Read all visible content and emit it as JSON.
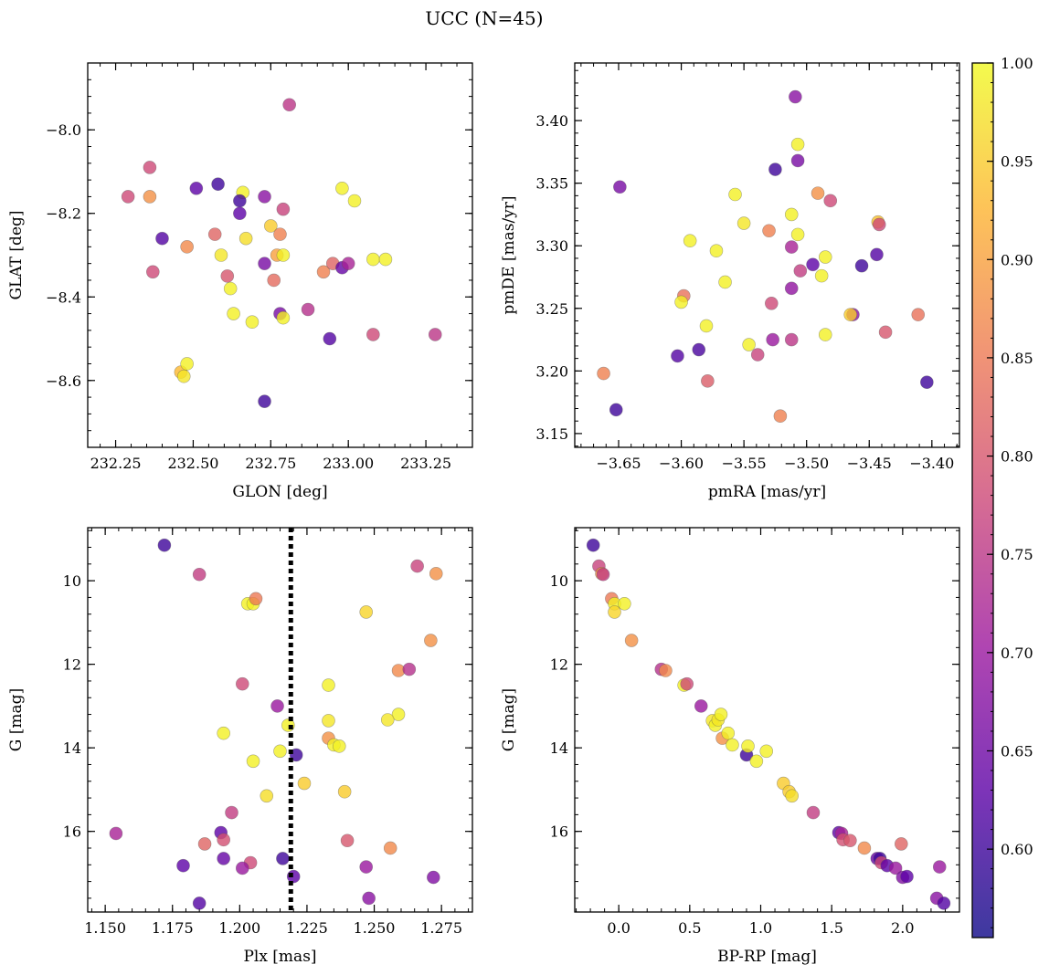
{
  "figure": {
    "title": "UCC (N=45)",
    "colorbar": {
      "vmin": 0.555,
      "vmax": 1.0,
      "ticks": [
        0.6,
        0.65,
        0.7,
        0.75,
        0.8,
        0.85,
        0.9,
        0.95,
        1.0
      ],
      "tick_labels": [
        "0.60",
        "0.65",
        "0.70",
        "0.75",
        "0.80",
        "0.85",
        "0.90",
        "0.95",
        "1.00"
      ],
      "colormap": "plasma"
    },
    "marker_color_scale": [
      "#0d0887",
      "#5c01a6",
      "#9c179e",
      "#cc4778",
      "#ed7953",
      "#fdb42f",
      "#f0f921"
    ]
  },
  "chart_data": [
    {
      "type": "scatter",
      "panel": "top-left",
      "xlabel": "GLON [deg]",
      "ylabel": "GLAT [deg]",
      "xlim": [
        232.16,
        233.4
      ],
      "ylim": [
        -8.76,
        -7.84
      ],
      "xticks": [
        232.25,
        232.5,
        232.75,
        233.0,
        233.25
      ],
      "xtick_labels": [
        "232.25",
        "232.50",
        "232.75",
        "233.00",
        "233.25"
      ],
      "yticks": [
        -8.0,
        -8.2,
        -8.4,
        -8.6
      ],
      "ytick_labels": [
        "−8.0",
        "−8.2",
        "−8.4",
        "−8.6"
      ],
      "points": [
        {
          "x": 232.81,
          "y": -7.94,
          "c": 0.75
        },
        {
          "x": 232.36,
          "y": -8.09,
          "c": 0.78
        },
        {
          "x": 232.29,
          "y": -8.16,
          "c": 0.78
        },
        {
          "x": 232.36,
          "y": -8.16,
          "c": 0.88
        },
        {
          "x": 232.51,
          "y": -8.14,
          "c": 0.63
        },
        {
          "x": 232.58,
          "y": -8.13,
          "c": 0.6
        },
        {
          "x": 232.66,
          "y": -8.15,
          "c": 0.99
        },
        {
          "x": 232.65,
          "y": -8.17,
          "c": 0.6
        },
        {
          "x": 232.65,
          "y": -8.2,
          "c": 0.63
        },
        {
          "x": 232.73,
          "y": -8.16,
          "c": 0.68
        },
        {
          "x": 232.79,
          "y": -8.19,
          "c": 0.77
        },
        {
          "x": 232.98,
          "y": -8.14,
          "c": 0.99
        },
        {
          "x": 233.02,
          "y": -8.17,
          "c": 0.99
        },
        {
          "x": 232.4,
          "y": -8.26,
          "c": 0.62
        },
        {
          "x": 232.37,
          "y": -8.34,
          "c": 0.78
        },
        {
          "x": 232.48,
          "y": -8.28,
          "c": 0.87
        },
        {
          "x": 232.57,
          "y": -8.25,
          "c": 0.82
        },
        {
          "x": 232.59,
          "y": -8.3,
          "c": 0.98
        },
        {
          "x": 232.61,
          "y": -8.35,
          "c": 0.8
        },
        {
          "x": 232.62,
          "y": -8.38,
          "c": 0.99
        },
        {
          "x": 232.67,
          "y": -8.26,
          "c": 0.97
        },
        {
          "x": 232.75,
          "y": -8.23,
          "c": 0.95
        },
        {
          "x": 232.77,
          "y": -8.3,
          "c": 0.9
        },
        {
          "x": 232.78,
          "y": -8.25,
          "c": 0.86
        },
        {
          "x": 232.79,
          "y": -8.3,
          "c": 0.99
        },
        {
          "x": 232.73,
          "y": -8.32,
          "c": 0.66
        },
        {
          "x": 232.76,
          "y": -8.36,
          "c": 0.83
        },
        {
          "x": 232.63,
          "y": -8.44,
          "c": 0.99
        },
        {
          "x": 232.69,
          "y": -8.46,
          "c": 0.99
        },
        {
          "x": 232.78,
          "y": -8.44,
          "c": 0.66
        },
        {
          "x": 232.79,
          "y": -8.45,
          "c": 0.99
        },
        {
          "x": 232.87,
          "y": -8.43,
          "c": 0.74
        },
        {
          "x": 232.92,
          "y": -8.34,
          "c": 0.86
        },
        {
          "x": 232.95,
          "y": -8.32,
          "c": 0.82
        },
        {
          "x": 232.98,
          "y": -8.33,
          "c": 0.64
        },
        {
          "x": 233.0,
          "y": -8.32,
          "c": 0.72
        },
        {
          "x": 233.08,
          "y": -8.31,
          "c": 0.99
        },
        {
          "x": 233.12,
          "y": -8.31,
          "c": 0.99
        },
        {
          "x": 232.94,
          "y": -8.5,
          "c": 0.62
        },
        {
          "x": 233.08,
          "y": -8.49,
          "c": 0.78
        },
        {
          "x": 233.28,
          "y": -8.49,
          "c": 0.75
        },
        {
          "x": 232.46,
          "y": -8.58,
          "c": 0.93
        },
        {
          "x": 232.48,
          "y": -8.56,
          "c": 0.99
        },
        {
          "x": 232.47,
          "y": -8.59,
          "c": 0.98
        },
        {
          "x": 232.73,
          "y": -8.65,
          "c": 0.6
        }
      ]
    },
    {
      "type": "scatter",
      "panel": "top-right",
      "xlabel": "pmRA [mas/yr]",
      "ylabel": "pmDE [mas/yr]",
      "xlim": [
        -3.685,
        -3.378
      ],
      "ylim": [
        3.139,
        3.446
      ],
      "xticks": [
        -3.65,
        -3.6,
        -3.55,
        -3.5,
        -3.45,
        -3.4
      ],
      "xtick_labels": [
        "−3.65",
        "−3.60",
        "−3.55",
        "−3.50",
        "−3.45",
        "−3.40"
      ],
      "yticks": [
        3.15,
        3.2,
        3.25,
        3.3,
        3.35,
        3.4
      ],
      "ytick_labels": [
        "3.15",
        "3.20",
        "3.25",
        "3.30",
        "3.35",
        "3.40"
      ],
      "points": [
        {
          "x": -3.509,
          "y": 3.419,
          "c": 0.68
        },
        {
          "x": -3.507,
          "y": 3.381,
          "c": 0.99
        },
        {
          "x": -3.507,
          "y": 3.368,
          "c": 0.66
        },
        {
          "x": -3.525,
          "y": 3.361,
          "c": 0.6
        },
        {
          "x": -3.649,
          "y": 3.347,
          "c": 0.66
        },
        {
          "x": -3.557,
          "y": 3.341,
          "c": 0.99
        },
        {
          "x": -3.491,
          "y": 3.342,
          "c": 0.88
        },
        {
          "x": -3.481,
          "y": 3.336,
          "c": 0.78
        },
        {
          "x": -3.512,
          "y": 3.325,
          "c": 0.99
        },
        {
          "x": -3.443,
          "y": 3.319,
          "c": 0.94
        },
        {
          "x": -3.442,
          "y": 3.317,
          "c": 0.78
        },
        {
          "x": -3.55,
          "y": 3.318,
          "c": 0.98
        },
        {
          "x": -3.53,
          "y": 3.312,
          "c": 0.86
        },
        {
          "x": -3.507,
          "y": 3.309,
          "c": 0.99
        },
        {
          "x": -3.593,
          "y": 3.304,
          "c": 0.99
        },
        {
          "x": -3.572,
          "y": 3.296,
          "c": 0.99
        },
        {
          "x": -3.512,
          "y": 3.299,
          "c": 0.72
        },
        {
          "x": -3.495,
          "y": 3.285,
          "c": 0.63
        },
        {
          "x": -3.456,
          "y": 3.284,
          "c": 0.6
        },
        {
          "x": -3.485,
          "y": 3.291,
          "c": 0.99
        },
        {
          "x": -3.444,
          "y": 3.293,
          "c": 0.62
        },
        {
          "x": -3.565,
          "y": 3.271,
          "c": 0.99
        },
        {
          "x": -3.505,
          "y": 3.28,
          "c": 0.76
        },
        {
          "x": -3.488,
          "y": 3.276,
          "c": 0.99
        },
        {
          "x": -3.512,
          "y": 3.266,
          "c": 0.69
        },
        {
          "x": -3.598,
          "y": 3.26,
          "c": 0.84
        },
        {
          "x": -3.6,
          "y": 3.255,
          "c": 0.99
        },
        {
          "x": -3.528,
          "y": 3.254,
          "c": 0.78
        },
        {
          "x": -3.463,
          "y": 3.245,
          "c": 0.68
        },
        {
          "x": -3.465,
          "y": 3.245,
          "c": 0.95
        },
        {
          "x": -3.411,
          "y": 3.245,
          "c": 0.84
        },
        {
          "x": -3.437,
          "y": 3.231,
          "c": 0.8
        },
        {
          "x": -3.58,
          "y": 3.236,
          "c": 0.99
        },
        {
          "x": -3.485,
          "y": 3.229,
          "c": 0.99
        },
        {
          "x": -3.527,
          "y": 3.225,
          "c": 0.7
        },
        {
          "x": -3.512,
          "y": 3.225,
          "c": 0.75
        },
        {
          "x": -3.546,
          "y": 3.221,
          "c": 0.99
        },
        {
          "x": -3.539,
          "y": 3.213,
          "c": 0.77
        },
        {
          "x": -3.603,
          "y": 3.212,
          "c": 0.62
        },
        {
          "x": -3.586,
          "y": 3.217,
          "c": 0.61
        },
        {
          "x": -3.662,
          "y": 3.198,
          "c": 0.86
        },
        {
          "x": -3.579,
          "y": 3.192,
          "c": 0.81
        },
        {
          "x": -3.404,
          "y": 3.191,
          "c": 0.6
        },
        {
          "x": -3.652,
          "y": 3.169,
          "c": 0.6
        },
        {
          "x": -3.521,
          "y": 3.164,
          "c": 0.86
        }
      ]
    },
    {
      "type": "scatter",
      "panel": "bottom-left",
      "xlabel": "Plx [mas]",
      "ylabel": "G [mag]",
      "xlim": [
        1.1435,
        1.2865
      ],
      "ylim": [
        17.93,
        8.73
      ],
      "y_inverted": true,
      "xticks": [
        1.15,
        1.175,
        1.2,
        1.225,
        1.25,
        1.275
      ],
      "xtick_labels": [
        "1.150",
        "1.175",
        "1.200",
        "1.225",
        "1.250",
        "1.275"
      ],
      "yticks": [
        10,
        12,
        14,
        16
      ],
      "ytick_labels": [
        "10",
        "12",
        "14",
        "16"
      ],
      "vline": {
        "x": 1.219,
        "style": "dotted",
        "color": "#000000"
      },
      "points": [
        {
          "x": 1.172,
          "y": 9.15,
          "c": 0.6
        },
        {
          "x": 1.185,
          "y": 9.85,
          "c": 0.76
        },
        {
          "x": 1.266,
          "y": 9.65,
          "c": 0.77
        },
        {
          "x": 1.273,
          "y": 9.83,
          "c": 0.88
        },
        {
          "x": 1.203,
          "y": 10.55,
          "c": 0.99
        },
        {
          "x": 1.205,
          "y": 10.55,
          "c": 0.99
        },
        {
          "x": 1.206,
          "y": 10.43,
          "c": 0.85
        },
        {
          "x": 1.247,
          "y": 10.75,
          "c": 0.96
        },
        {
          "x": 1.271,
          "y": 11.43,
          "c": 0.88
        },
        {
          "x": 1.201,
          "y": 12.47,
          "c": 0.78
        },
        {
          "x": 1.233,
          "y": 12.5,
          "c": 0.99
        },
        {
          "x": 1.259,
          "y": 12.15,
          "c": 0.87
        },
        {
          "x": 1.263,
          "y": 12.12,
          "c": 0.74
        },
        {
          "x": 1.214,
          "y": 13.0,
          "c": 0.7
        },
        {
          "x": 1.233,
          "y": 13.35,
          "c": 0.98
        },
        {
          "x": 1.259,
          "y": 13.2,
          "c": 0.99
        },
        {
          "x": 1.255,
          "y": 13.33,
          "c": 0.98
        },
        {
          "x": 1.218,
          "y": 13.46,
          "c": 0.99
        },
        {
          "x": 1.194,
          "y": 13.65,
          "c": 0.99
        },
        {
          "x": 1.233,
          "y": 13.77,
          "c": 0.88
        },
        {
          "x": 1.235,
          "y": 13.93,
          "c": 0.99
        },
        {
          "x": 1.237,
          "y": 13.96,
          "c": 0.99
        },
        {
          "x": 1.215,
          "y": 14.08,
          "c": 0.99
        },
        {
          "x": 1.221,
          "y": 14.17,
          "c": 0.6
        },
        {
          "x": 1.205,
          "y": 14.32,
          "c": 0.99
        },
        {
          "x": 1.224,
          "y": 14.85,
          "c": 0.95
        },
        {
          "x": 1.21,
          "y": 15.15,
          "c": 0.97
        },
        {
          "x": 1.239,
          "y": 15.05,
          "c": 0.95
        },
        {
          "x": 1.197,
          "y": 15.55,
          "c": 0.76
        },
        {
          "x": 1.154,
          "y": 16.05,
          "c": 0.72
        },
        {
          "x": 1.193,
          "y": 16.03,
          "c": 0.63
        },
        {
          "x": 1.194,
          "y": 16.2,
          "c": 0.79
        },
        {
          "x": 1.187,
          "y": 16.3,
          "c": 0.82
        },
        {
          "x": 1.24,
          "y": 16.22,
          "c": 0.8
        },
        {
          "x": 1.256,
          "y": 16.4,
          "c": 0.87
        },
        {
          "x": 1.179,
          "y": 16.82,
          "c": 0.63
        },
        {
          "x": 1.194,
          "y": 16.65,
          "c": 0.64
        },
        {
          "x": 1.204,
          "y": 16.75,
          "c": 0.78
        },
        {
          "x": 1.201,
          "y": 16.88,
          "c": 0.7
        },
        {
          "x": 1.216,
          "y": 16.65,
          "c": 0.6
        },
        {
          "x": 1.247,
          "y": 16.85,
          "c": 0.7
        },
        {
          "x": 1.22,
          "y": 17.08,
          "c": 0.63
        },
        {
          "x": 1.272,
          "y": 17.1,
          "c": 0.67
        },
        {
          "x": 1.185,
          "y": 17.72,
          "c": 0.62
        },
        {
          "x": 1.248,
          "y": 17.6,
          "c": 0.68
        }
      ]
    },
    {
      "type": "scatter",
      "panel": "bottom-right",
      "xlabel": "BP-RP [mag]",
      "ylabel": "G [mag]",
      "xlim": [
        -0.31,
        2.4
      ],
      "ylim": [
        17.93,
        8.73
      ],
      "y_inverted": true,
      "xticks": [
        0.0,
        0.5,
        1.0,
        1.5,
        2.0
      ],
      "xtick_labels": [
        "0.0",
        "0.5",
        "1.0",
        "1.5",
        "2.0"
      ],
      "yticks": [
        10,
        12,
        14,
        16
      ],
      "ytick_labels": [
        "10",
        "12",
        "14",
        "16"
      ],
      "points": [
        {
          "x": -0.18,
          "y": 9.15,
          "c": 0.6
        },
        {
          "x": -0.14,
          "y": 9.65,
          "c": 0.77
        },
        {
          "x": -0.12,
          "y": 9.83,
          "c": 0.88
        },
        {
          "x": -0.11,
          "y": 9.85,
          "c": 0.76
        },
        {
          "x": -0.05,
          "y": 10.43,
          "c": 0.85
        },
        {
          "x": -0.03,
          "y": 10.55,
          "c": 0.99
        },
        {
          "x": -0.03,
          "y": 10.75,
          "c": 0.96
        },
        {
          "x": 0.04,
          "y": 10.55,
          "c": 0.99
        },
        {
          "x": 0.09,
          "y": 11.43,
          "c": 0.88
        },
        {
          "x": 0.3,
          "y": 12.12,
          "c": 0.74
        },
        {
          "x": 0.33,
          "y": 12.15,
          "c": 0.87
        },
        {
          "x": 0.46,
          "y": 12.5,
          "c": 0.99
        },
        {
          "x": 0.48,
          "y": 12.47,
          "c": 0.78
        },
        {
          "x": 0.58,
          "y": 13.0,
          "c": 0.7
        },
        {
          "x": 0.66,
          "y": 13.35,
          "c": 0.98
        },
        {
          "x": 0.68,
          "y": 13.46,
          "c": 0.99
        },
        {
          "x": 0.7,
          "y": 13.33,
          "c": 0.98
        },
        {
          "x": 0.72,
          "y": 13.2,
          "c": 0.99
        },
        {
          "x": 0.73,
          "y": 13.77,
          "c": 0.88
        },
        {
          "x": 0.77,
          "y": 13.65,
          "c": 0.99
        },
        {
          "x": 0.8,
          "y": 13.93,
          "c": 0.99
        },
        {
          "x": 0.9,
          "y": 14.17,
          "c": 0.6
        },
        {
          "x": 0.91,
          "y": 13.96,
          "c": 0.99
        },
        {
          "x": 0.97,
          "y": 14.32,
          "c": 0.99
        },
        {
          "x": 1.04,
          "y": 14.08,
          "c": 0.99
        },
        {
          "x": 1.16,
          "y": 14.85,
          "c": 0.95
        },
        {
          "x": 1.2,
          "y": 15.05,
          "c": 0.95
        },
        {
          "x": 1.22,
          "y": 15.15,
          "c": 0.97
        },
        {
          "x": 1.37,
          "y": 15.55,
          "c": 0.76
        },
        {
          "x": 1.55,
          "y": 16.03,
          "c": 0.63
        },
        {
          "x": 1.57,
          "y": 16.05,
          "c": 0.72
        },
        {
          "x": 1.58,
          "y": 16.2,
          "c": 0.79
        },
        {
          "x": 1.63,
          "y": 16.22,
          "c": 0.8
        },
        {
          "x": 1.73,
          "y": 16.4,
          "c": 0.87
        },
        {
          "x": 1.82,
          "y": 16.65,
          "c": 0.64
        },
        {
          "x": 1.84,
          "y": 16.65,
          "c": 0.6
        },
        {
          "x": 1.85,
          "y": 16.75,
          "c": 0.78
        },
        {
          "x": 1.89,
          "y": 16.82,
          "c": 0.63
        },
        {
          "x": 1.95,
          "y": 16.88,
          "c": 0.7
        },
        {
          "x": 1.99,
          "y": 16.3,
          "c": 0.82
        },
        {
          "x": 2.0,
          "y": 17.1,
          "c": 0.67
        },
        {
          "x": 2.03,
          "y": 17.08,
          "c": 0.63
        },
        {
          "x": 2.26,
          "y": 16.85,
          "c": 0.7
        },
        {
          "x": 2.24,
          "y": 17.6,
          "c": 0.68
        },
        {
          "x": 2.29,
          "y": 17.72,
          "c": 0.62
        }
      ]
    }
  ]
}
